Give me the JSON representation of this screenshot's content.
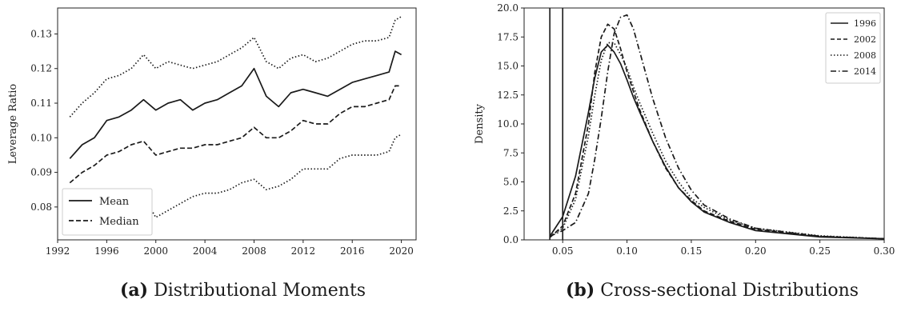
{
  "chart_data": [
    {
      "id": "a",
      "type": "line",
      "caption_label": "(a)",
      "caption_text": "Distributional Moments",
      "ylabel": "Leverage Ratio",
      "xlabel": "",
      "xlim": [
        1992,
        2021.2
      ],
      "ylim": [
        0.0705,
        0.1375
      ],
      "xticks": [
        "1992",
        "1996",
        "2000",
        "2004",
        "2008",
        "2012",
        "2016",
        "2020"
      ],
      "yticks": [
        "0.08",
        "0.09",
        "0.10",
        "0.11",
        "0.12",
        "0.13"
      ],
      "legend": {
        "position": "lower-left",
        "entries": [
          "Mean",
          "Median"
        ]
      },
      "grid": false,
      "x": [
        1993.0,
        1994.0,
        1995.0,
        1996.0,
        1997.0,
        1998.0,
        1999.0,
        2000.0,
        2001.0,
        2002.0,
        2003.0,
        2004.0,
        2005.0,
        2006.0,
        2007.0,
        2008.0,
        2009.0,
        2010.0,
        2011.0,
        2012.0,
        2013.0,
        2014.0,
        2015.0,
        2016.0,
        2017.0,
        2018.0,
        2019.0,
        2019.5,
        2020.0
      ],
      "series": [
        {
          "name": "Mean",
          "dash": "solid",
          "values": [
            0.094,
            0.098,
            0.1,
            0.105,
            0.106,
            0.108,
            0.111,
            0.108,
            0.11,
            0.111,
            0.108,
            0.11,
            0.111,
            0.113,
            0.115,
            0.12,
            0.112,
            0.109,
            0.113,
            0.114,
            0.113,
            0.112,
            0.114,
            0.116,
            0.117,
            0.118,
            0.119,
            0.125,
            0.124
          ]
        },
        {
          "name": "Median",
          "dash": "dashed",
          "values": [
            0.087,
            0.09,
            0.092,
            0.095,
            0.096,
            0.098,
            0.099,
            0.095,
            0.096,
            0.097,
            0.097,
            0.098,
            0.098,
            0.099,
            0.1,
            0.103,
            0.1,
            0.1,
            0.102,
            0.105,
            0.104,
            0.104,
            0.107,
            0.109,
            0.109,
            0.11,
            0.111,
            0.115,
            0.115
          ]
        },
        {
          "name": "",
          "dash": "dotted",
          "values": [
            0.106,
            0.11,
            0.113,
            0.117,
            0.118,
            0.12,
            0.124,
            0.12,
            0.122,
            0.121,
            0.12,
            0.121,
            0.122,
            0.124,
            0.126,
            0.129,
            0.122,
            0.12,
            0.123,
            0.124,
            0.122,
            0.123,
            0.125,
            0.127,
            0.128,
            0.128,
            0.129,
            0.134,
            0.135
          ]
        },
        {
          "name": "",
          "dash": "dotted",
          "values": [
            0.072,
            0.075,
            0.077,
            0.079,
            0.08,
            0.082,
            0.083,
            0.077,
            0.079,
            0.081,
            0.083,
            0.084,
            0.084,
            0.085,
            0.087,
            0.088,
            0.085,
            0.086,
            0.088,
            0.091,
            0.091,
            0.091,
            0.094,
            0.095,
            0.095,
            0.095,
            0.096,
            0.1,
            0.101
          ]
        }
      ]
    },
    {
      "id": "b",
      "type": "line",
      "caption_label": "(b)",
      "caption_text": "Cross-sectional Distributions",
      "ylabel": "Density",
      "xlabel": "",
      "xlim": [
        0.02,
        0.3
      ],
      "ylim": [
        0.0,
        20.0
      ],
      "xticks": [
        "0.05",
        "0.10",
        "0.15",
        "0.20",
        "0.25",
        "0.30"
      ],
      "yticks": [
        "0.0",
        "2.5",
        "5.0",
        "7.5",
        "10.0",
        "12.5",
        "15.0",
        "17.5",
        "20.0"
      ],
      "vlines": [
        0.04,
        0.05
      ],
      "legend": {
        "position": "top-right",
        "entries": [
          "1996",
          "2002",
          "2008",
          "2014"
        ]
      },
      "grid": false,
      "x": [
        0.04,
        0.05,
        0.06,
        0.07,
        0.075,
        0.08,
        0.085,
        0.09,
        0.095,
        0.1,
        0.105,
        0.11,
        0.12,
        0.13,
        0.14,
        0.15,
        0.16,
        0.18,
        0.2,
        0.25,
        0.3
      ],
      "series": [
        {
          "name": "1996",
          "dash": "solid",
          "values": [
            0.3,
            2.0,
            5.5,
            11.0,
            14.0,
            16.2,
            16.8,
            16.2,
            15.2,
            13.8,
            12.3,
            11.0,
            8.5,
            6.3,
            4.5,
            3.3,
            2.4,
            1.5,
            0.8,
            0.25,
            0.1
          ]
        },
        {
          "name": "2002",
          "dash": "dashed",
          "values": [
            0.2,
            1.2,
            4.0,
            10.0,
            14.5,
            17.5,
            18.6,
            18.2,
            16.5,
            14.5,
            12.8,
            11.2,
            8.5,
            6.2,
            4.5,
            3.4,
            2.5,
            1.6,
            0.9,
            0.3,
            0.1
          ]
        },
        {
          "name": "2008",
          "dash": "dotted",
          "values": [
            0.3,
            1.0,
            3.5,
            9.0,
            12.5,
            15.5,
            17.0,
            17.0,
            16.0,
            14.8,
            13.2,
            11.8,
            9.2,
            6.8,
            5.0,
            3.6,
            2.8,
            1.7,
            1.0,
            0.35,
            0.1
          ]
        },
        {
          "name": "2014",
          "dash": "dashdot",
          "values": [
            0.3,
            0.8,
            1.5,
            4.0,
            7.0,
            10.5,
            14.5,
            17.8,
            19.2,
            19.4,
            18.2,
            16.2,
            12.2,
            8.8,
            6.2,
            4.3,
            3.0,
            1.8,
            1.0,
            0.3,
            0.1
          ]
        }
      ]
    }
  ]
}
